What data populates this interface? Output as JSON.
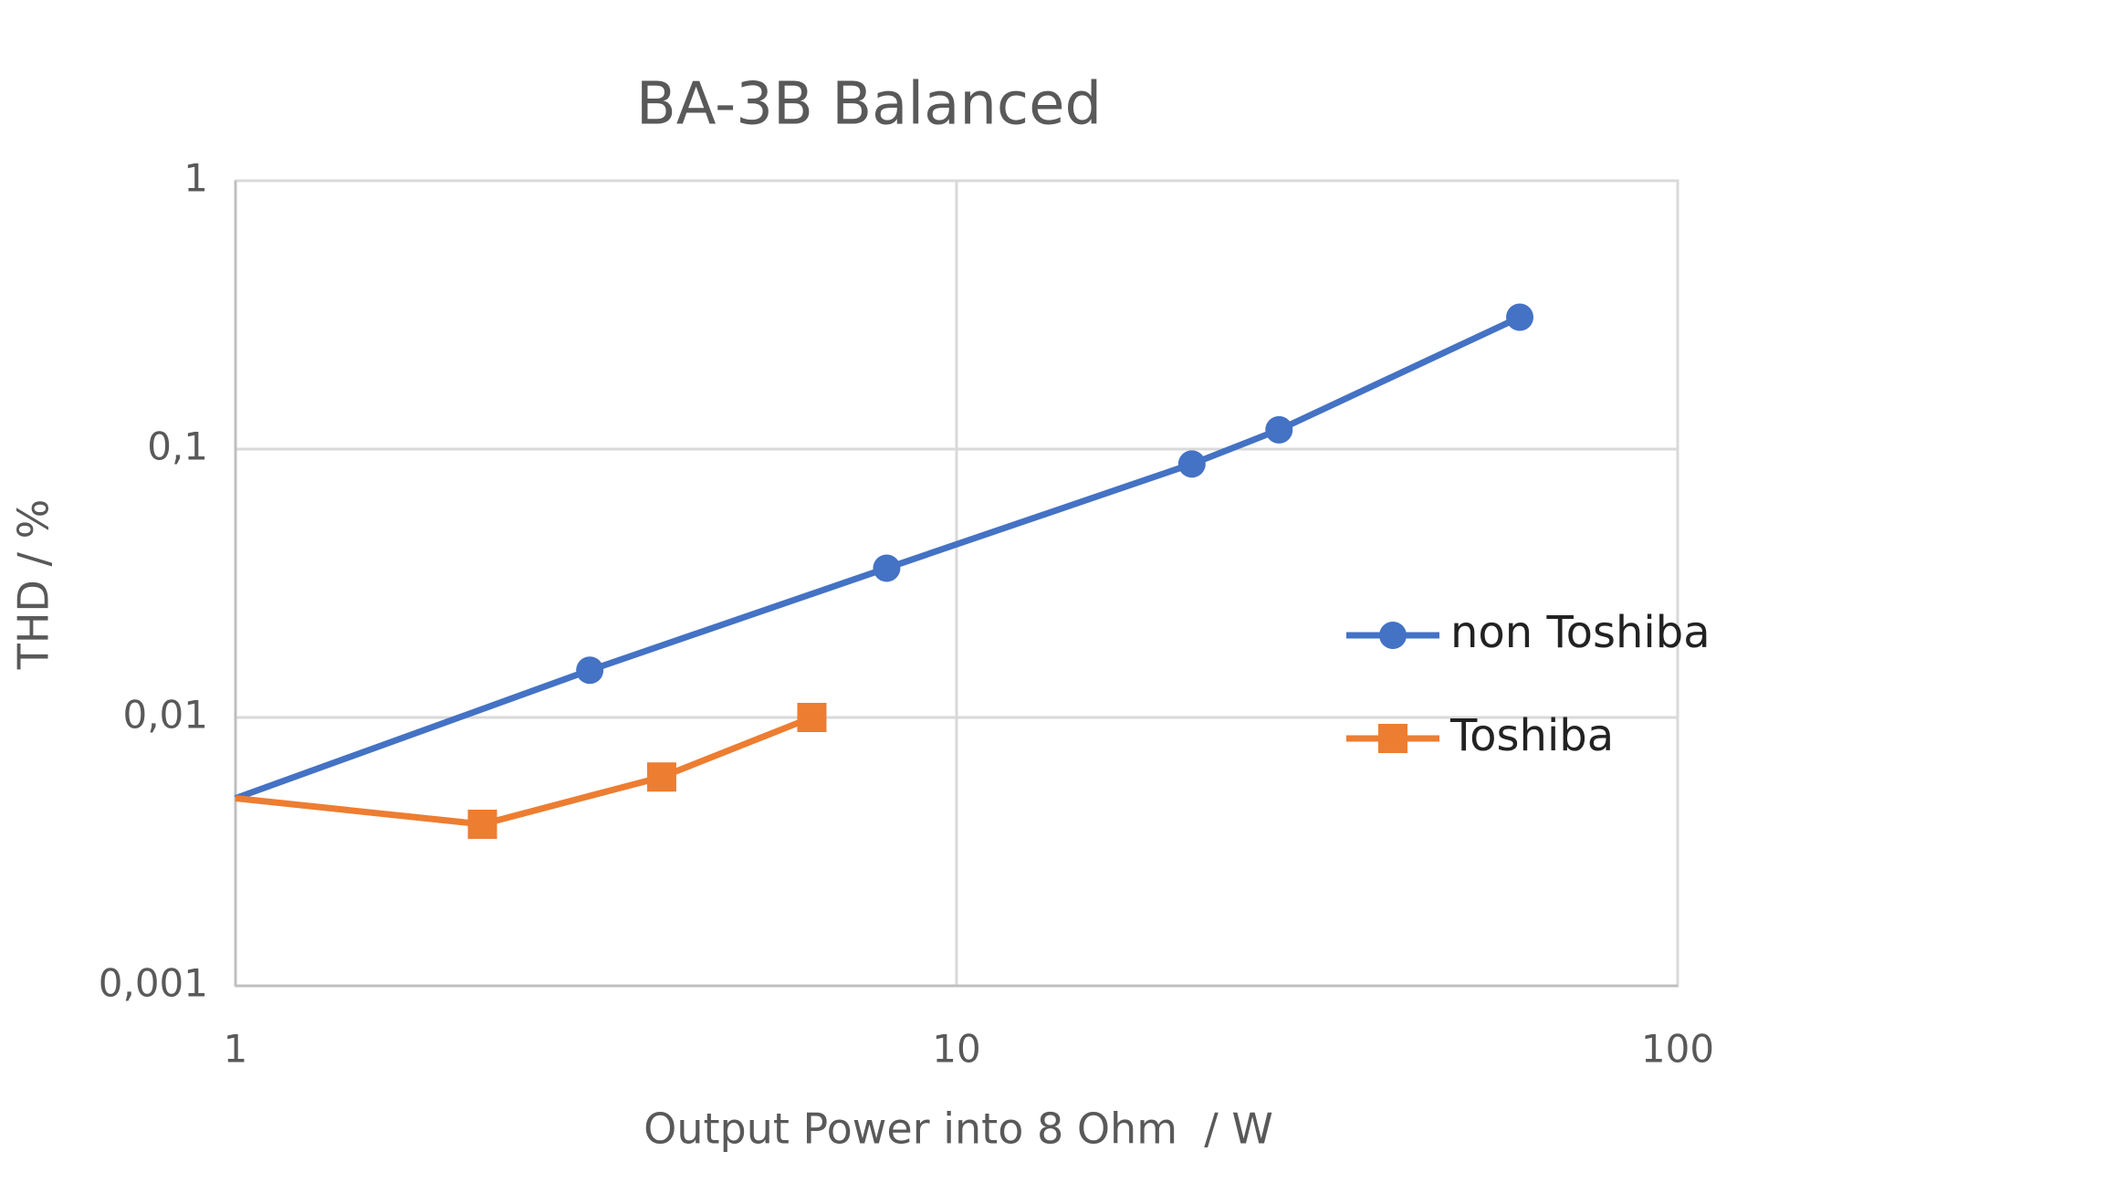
{
  "chart_data": {
    "type": "line",
    "title": "BA-3B Balanced",
    "xlabel": "Output Power into 8 Ohm  / W",
    "ylabel": "THD / %",
    "xscale": "log",
    "yscale": "log",
    "xlim": [
      1,
      100
    ],
    "ylim": [
      0.001,
      1
    ],
    "xticks": [
      1,
      10,
      100
    ],
    "yticks": [
      {
        "value": 0.001,
        "label": "0,001"
      },
      {
        "value": 0.01,
        "label": "0,01"
      },
      {
        "value": 0.1,
        "label": "0,1"
      },
      1
    ],
    "grid": true,
    "legend": "right",
    "series": [
      {
        "name": "non Toshiba",
        "color": "#4472c4",
        "marker": "circle",
        "x": [
          1,
          3.1,
          8,
          21.2,
          28,
          60.4
        ],
        "values": [
          0.005,
          0.015,
          0.036,
          0.088,
          0.118,
          0.31
        ]
      },
      {
        "name": "Toshiba",
        "color": "#ed7d31",
        "marker": "square",
        "x": [
          1,
          2.2,
          3.9,
          6.3
        ],
        "values": [
          0.005,
          0.004,
          0.006,
          0.01
        ]
      }
    ]
  }
}
